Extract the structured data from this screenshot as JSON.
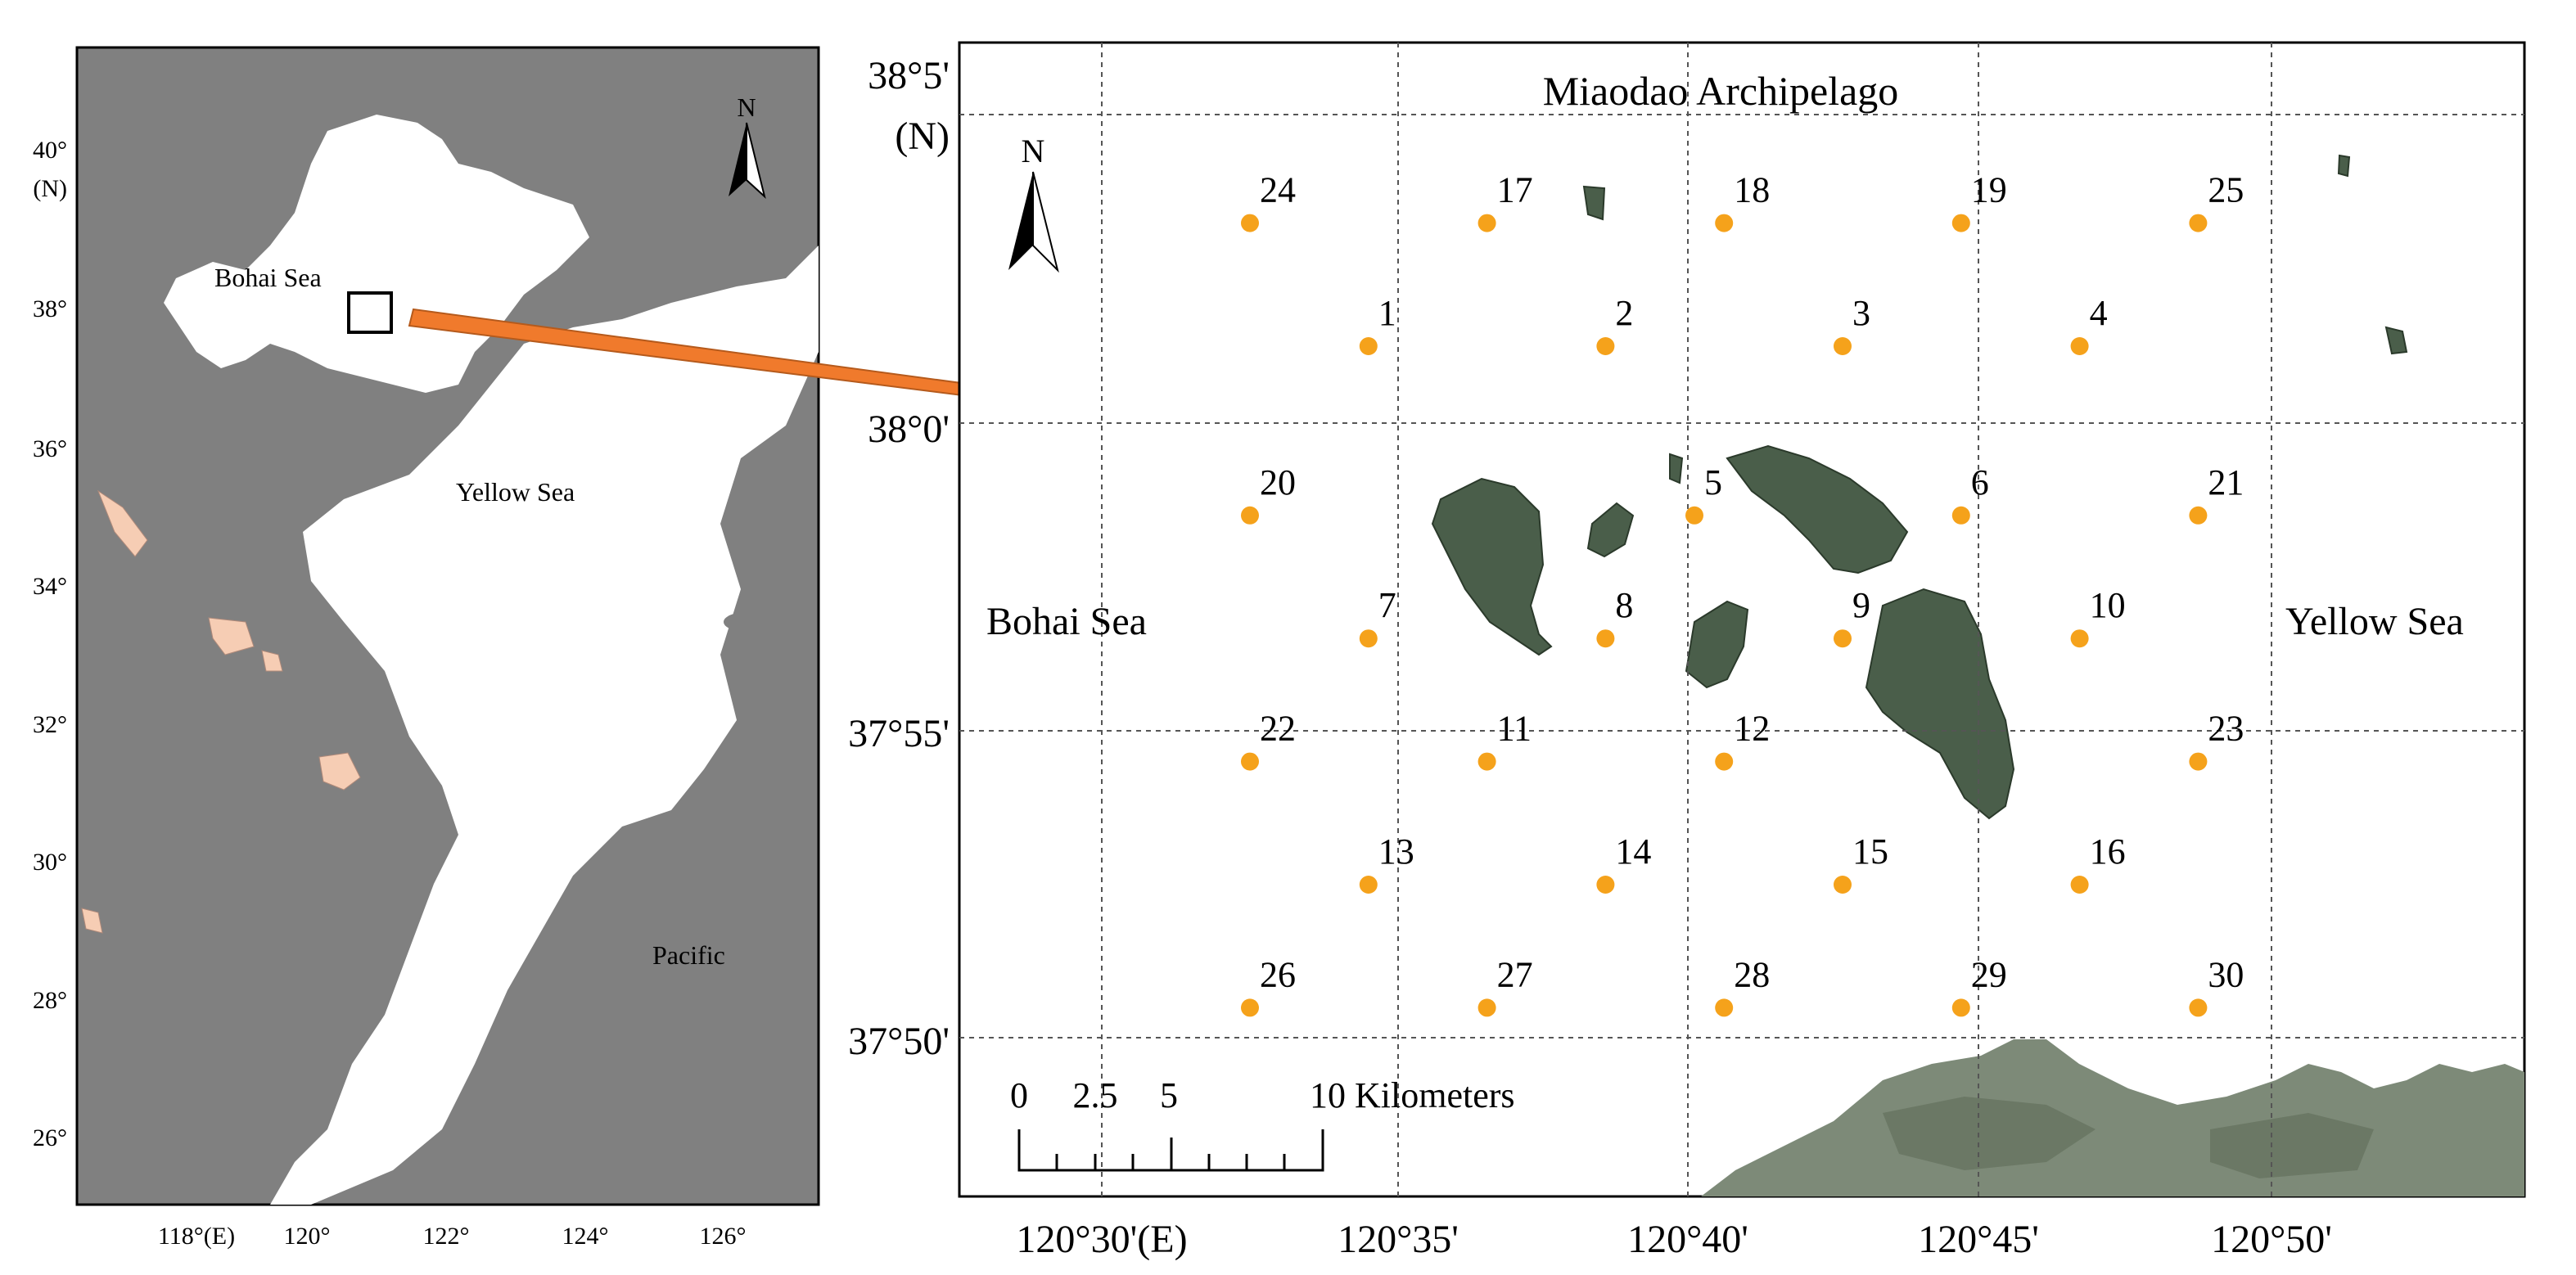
{
  "left_map": {
    "seas": {
      "bohai": "Bohai Sea",
      "yellow": "Yellow Sea",
      "pacific": "Pacific"
    },
    "lat_labels": [
      "40°",
      "(N)",
      "38°",
      "36°",
      "34°",
      "32°",
      "30°",
      "28°",
      "26°"
    ],
    "lon_labels": [
      "118°(E)",
      "120°",
      "122°",
      "124°",
      "126°"
    ],
    "north_label": "N",
    "colors": {
      "land": "#808080",
      "sea": "#ffffff",
      "lakes": "#f6cdb4",
      "arrow": "#f07a2c"
    }
  },
  "right_map": {
    "title": "Miaodao Archipelago",
    "north_label": "N",
    "seas": {
      "bohai": "Bohai Sea",
      "yellow": "Yellow Sea"
    },
    "lat_labels": [
      "38°5'",
      "(N)",
      "38°0'",
      "37°55'",
      "37°50'"
    ],
    "lon_labels": [
      "120°30'(E)",
      "120°35'",
      "120°40'",
      "120°45'",
      "120°50'"
    ],
    "scale_bar": {
      "ticks": [
        "0",
        "2.5",
        "5",
        "10 Kilometers"
      ]
    },
    "stations": [
      {
        "id": "24",
        "lon_min": 32.5,
        "lat_min": 3.25
      },
      {
        "id": "17",
        "lon_min": 36.5,
        "lat_min": 3.25
      },
      {
        "id": "18",
        "lon_min": 40.5,
        "lat_min": 3.25
      },
      {
        "id": "19",
        "lon_min": 44.5,
        "lat_min": 3.25
      },
      {
        "id": "25",
        "lon_min": 48.5,
        "lat_min": 3.25
      },
      {
        "id": "1",
        "lon_min": 34.5,
        "lat_min": 1.25
      },
      {
        "id": "2",
        "lon_min": 38.5,
        "lat_min": 1.25
      },
      {
        "id": "3",
        "lon_min": 42.5,
        "lat_min": 1.25
      },
      {
        "id": "4",
        "lon_min": 46.5,
        "lat_min": 1.25
      },
      {
        "id": "20",
        "lon_min": 32.5,
        "lat_min": -1.5
      },
      {
        "id": "5",
        "lon_min": 40.0,
        "lat_min": -1.5
      },
      {
        "id": "6",
        "lon_min": 44.5,
        "lat_min": -1.5
      },
      {
        "id": "21",
        "lon_min": 48.5,
        "lat_min": -1.5
      },
      {
        "id": "7",
        "lon_min": 34.5,
        "lat_min": -3.5
      },
      {
        "id": "8",
        "lon_min": 38.5,
        "lat_min": -3.5
      },
      {
        "id": "9",
        "lon_min": 42.5,
        "lat_min": -3.5
      },
      {
        "id": "10",
        "lon_min": 46.5,
        "lat_min": -3.5
      },
      {
        "id": "22",
        "lon_min": 32.5,
        "lat_min": -5.5
      },
      {
        "id": "11",
        "lon_min": 36.5,
        "lat_min": -5.5
      },
      {
        "id": "12",
        "lon_min": 40.5,
        "lat_min": -5.5
      },
      {
        "id": "23",
        "lon_min": 48.5,
        "lat_min": -5.5
      },
      {
        "id": "13",
        "lon_min": 34.5,
        "lat_min": -7.5
      },
      {
        "id": "14",
        "lon_min": 38.5,
        "lat_min": -7.5
      },
      {
        "id": "15",
        "lon_min": 42.5,
        "lat_min": -7.5
      },
      {
        "id": "16",
        "lon_min": 46.5,
        "lat_min": -7.5
      },
      {
        "id": "26",
        "lon_min": 32.5,
        "lat_min": -9.5
      },
      {
        "id": "27",
        "lon_min": 36.5,
        "lat_min": -9.5
      },
      {
        "id": "28",
        "lon_min": 40.5,
        "lat_min": -9.5
      },
      {
        "id": "29",
        "lon_min": 44.5,
        "lat_min": -9.5
      },
      {
        "id": "30",
        "lon_min": 48.5,
        "lat_min": -9.5
      }
    ],
    "colors": {
      "station": "#f5a21b",
      "island": "#4a5e4a",
      "island_light": "#6f7f62",
      "coast": "#7d8a78"
    }
  }
}
